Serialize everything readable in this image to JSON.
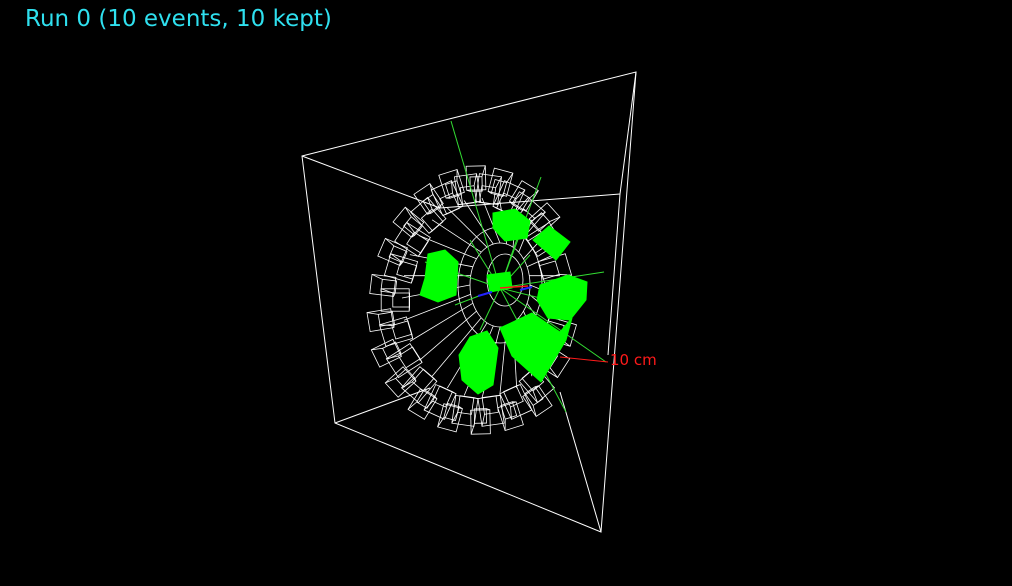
{
  "viewer": {
    "run_title": "Run 0 (10 events, 10 kept)",
    "scale_label": "10 cm"
  },
  "colors": {
    "background": "#000000",
    "title": "#2fe0ef",
    "wireframe": "#ffffff",
    "hits": "#00ff00",
    "tracks": "#33dd33",
    "scale": "#ff1a1a",
    "axis_blue": "#2222ff"
  },
  "icons": [
    "detector-wireframe-icon"
  ]
}
